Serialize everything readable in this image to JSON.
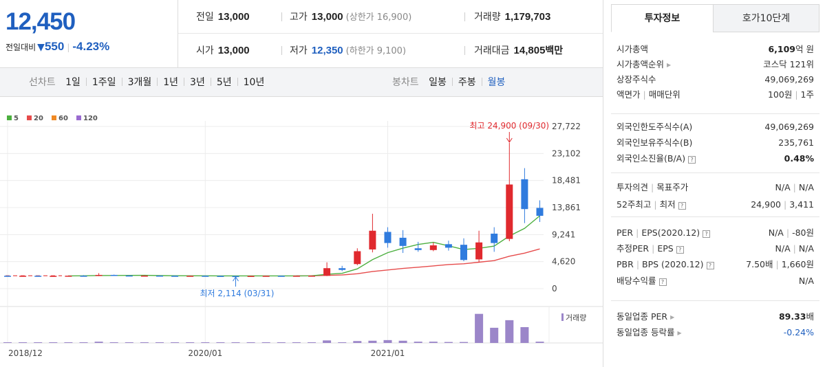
{
  "quote": {
    "price": "12,450",
    "change_label": "전일대비",
    "change_value": "550",
    "change_rate": "-4.23%",
    "stats": {
      "prev_close_label": "전일",
      "prev_close": "13,000",
      "high_label": "고가",
      "high": "13,000",
      "upper_limit": "(상한가 16,900)",
      "volume_label": "거래량",
      "volume": "1,179,703",
      "open_label": "시가",
      "open": "13,000",
      "low_label": "저가",
      "low": "12,350",
      "lower_limit": "(하한가 9,100)",
      "amount_label": "거래대금",
      "amount": "14,805",
      "amount_unit": "백만"
    }
  },
  "toolbar": {
    "line_chart_label": "선차트",
    "line_options": [
      "1일",
      "1주일",
      "3개월",
      "1년",
      "3년",
      "5년",
      "10년"
    ],
    "candle_chart_label": "봉차트",
    "candle_options": [
      "일봉",
      "주봉",
      "월봉"
    ],
    "candle_active": "월봉"
  },
  "chart_data": {
    "type": "candlestick",
    "period": "월봉",
    "colors": {
      "up": "#e0292e",
      "down": "#2f7bde",
      "ma5": "#4caf3f",
      "ma20": "#e64b4b",
      "ma60": "#f08a24",
      "ma120": "#9a6bd0",
      "volume": "#9b86c9",
      "annotation_high": "#e0292e",
      "annotation_low": "#2f7bde"
    },
    "legend": [
      {
        "name": "5",
        "color": "#4caf3f"
      },
      {
        "name": "20",
        "color": "#e64b4b"
      },
      {
        "name": "60",
        "color": "#f08a24"
      },
      {
        "name": "120",
        "color": "#9a6bd0"
      }
    ],
    "y_ticks": [
      "27,722",
      "23,102",
      "18,481",
      "13,861",
      "9,241",
      "4,620",
      "0"
    ],
    "y_tick_values": [
      27722,
      23102,
      18481,
      13861,
      9241,
      4620,
      0
    ],
    "ylim": [
      0,
      27722
    ],
    "x_ticks": [
      "2018/12",
      "2020/01",
      "2021/01"
    ],
    "x_tick_index": [
      0,
      13,
      25
    ],
    "annotations": {
      "high": "최고 24,900 (09/30)",
      "high_value": 24900,
      "high_index": 33,
      "low": "최저 2,114 (03/31)",
      "low_value": 2114,
      "low_index": 15
    },
    "volume_label": "거래량",
    "candles": [
      {
        "o": 2200,
        "h": 2250,
        "l": 2150,
        "c": 2180
      },
      {
        "o": 2180,
        "h": 2230,
        "l": 2140,
        "c": 2200
      },
      {
        "o": 2200,
        "h": 2240,
        "l": 2150,
        "c": 2170
      },
      {
        "o": 2170,
        "h": 2220,
        "l": 2130,
        "c": 2190
      },
      {
        "o": 2190,
        "h": 2250,
        "l": 2150,
        "c": 2210
      },
      {
        "o": 2210,
        "h": 2300,
        "l": 2160,
        "c": 2180
      },
      {
        "o": 2180,
        "h": 2650,
        "l": 2150,
        "c": 2350
      },
      {
        "o": 2350,
        "h": 2400,
        "l": 2200,
        "c": 2250
      },
      {
        "o": 2250,
        "h": 2300,
        "l": 2180,
        "c": 2200
      },
      {
        "o": 2200,
        "h": 2280,
        "l": 2160,
        "c": 2230
      },
      {
        "o": 2230,
        "h": 2280,
        "l": 2180,
        "c": 2200
      },
      {
        "o": 2200,
        "h": 2260,
        "l": 2150,
        "c": 2170
      },
      {
        "o": 2170,
        "h": 2230,
        "l": 2140,
        "c": 2200
      },
      {
        "o": 2200,
        "h": 2240,
        "l": 2150,
        "c": 2180
      },
      {
        "o": 2180,
        "h": 2220,
        "l": 2130,
        "c": 2160
      },
      {
        "o": 2160,
        "h": 2200,
        "l": 2114,
        "c": 2150
      },
      {
        "o": 2150,
        "h": 2200,
        "l": 2120,
        "c": 2180
      },
      {
        "o": 2180,
        "h": 2230,
        "l": 2140,
        "c": 2200
      },
      {
        "o": 2200,
        "h": 2240,
        "l": 2160,
        "c": 2190
      },
      {
        "o": 2190,
        "h": 2240,
        "l": 2150,
        "c": 2210
      },
      {
        "o": 2210,
        "h": 2260,
        "l": 2170,
        "c": 2220
      },
      {
        "o": 2200,
        "h": 4500,
        "l": 2150,
        "c": 3500
      },
      {
        "o": 3500,
        "h": 3900,
        "l": 3000,
        "c": 3200
      },
      {
        "o": 4200,
        "h": 6900,
        "l": 4000,
        "c": 6400
      },
      {
        "o": 6700,
        "h": 12800,
        "l": 6200,
        "c": 9900
      },
      {
        "o": 9700,
        "h": 10500,
        "l": 7000,
        "c": 7800
      },
      {
        "o": 8700,
        "h": 10000,
        "l": 6100,
        "c": 7300
      },
      {
        "o": 6900,
        "h": 8000,
        "l": 6300,
        "c": 6600
      },
      {
        "o": 6600,
        "h": 7900,
        "l": 6400,
        "c": 7400
      },
      {
        "o": 7600,
        "h": 8200,
        "l": 6500,
        "c": 7000
      },
      {
        "o": 7500,
        "h": 8600,
        "l": 4700,
        "c": 4900
      },
      {
        "o": 5000,
        "h": 9900,
        "l": 4500,
        "c": 7900
      },
      {
        "o": 9400,
        "h": 10500,
        "l": 6300,
        "c": 7800
      },
      {
        "o": 8500,
        "h": 24900,
        "l": 8100,
        "c": 17800
      },
      {
        "o": 18700,
        "h": 20600,
        "l": 11200,
        "c": 13600
      },
      {
        "o": 13800,
        "h": 15100,
        "l": 11400,
        "c": 12450
      }
    ],
    "ma5": [
      null,
      null,
      null,
      null,
      2190,
      2200,
      2240,
      2260,
      2270,
      2280,
      2230,
      2210,
      2200,
      2200,
      2190,
      2180,
      2180,
      2180,
      2180,
      2190,
      2200,
      2460,
      2620,
      3380,
      4960,
      6160,
      6920,
      7550,
      7920,
      7320,
      6680,
      6900,
      7270,
      9000,
      10300,
      12450
    ],
    "ma20": [
      null,
      null,
      null,
      null,
      null,
      null,
      null,
      null,
      null,
      null,
      null,
      null,
      null,
      null,
      null,
      null,
      null,
      null,
      null,
      2190,
      2200,
      2270,
      2340,
      2550,
      2920,
      3200,
      3450,
      3660,
      3890,
      4120,
      4250,
      4520,
      4790,
      5540,
      6070,
      6790
    ],
    "volume": [
      0.01,
      0.01,
      0.01,
      0.01,
      0.01,
      0.02,
      0.04,
      0.02,
      0.01,
      0.01,
      0.01,
      0.01,
      0.01,
      0.01,
      0.01,
      0.01,
      0.01,
      0.01,
      0.01,
      0.01,
      0.01,
      0.08,
      0.02,
      0.06,
      0.07,
      0.09,
      0.07,
      0.04,
      0.04,
      0.03,
      0.03,
      0.92,
      0.48,
      0.72,
      0.5,
      0.04
    ]
  },
  "info": {
    "tabs": [
      "투자정보",
      "호가10단계"
    ],
    "group1": [
      {
        "k": "시가총액",
        "v_bold": "6,109",
        "v_rest": "억 원"
      },
      {
        "k": "시가총액순위",
        "v": "코스닥 121위"
      },
      {
        "k": "상장주식수",
        "v": "49,069,269"
      },
      {
        "k": "액면가",
        "k2": "매매단위",
        "v": "100원",
        "v2": "1주"
      }
    ],
    "group2": [
      {
        "k": "외국인한도주식수(A)",
        "v": "49,069,269"
      },
      {
        "k": "외국인보유주식수(B)",
        "v": "235,761"
      },
      {
        "k": "외국인소진율(B/A)",
        "v_bold": "0.48%"
      }
    ],
    "group3": [
      {
        "k": "투자의견",
        "k2": "목표주가",
        "v": "N/A",
        "v2": "N/A"
      },
      {
        "k": "52주최고",
        "k2": "최저",
        "v": "24,900",
        "v2": "3,411"
      }
    ],
    "group4": [
      {
        "k": "PER",
        "k2": "EPS(2020.12)",
        "v": "N/A",
        "v2": "-80원"
      },
      {
        "k": "추정PER",
        "k2": "EPS",
        "v": "N/A",
        "v2": "N/A"
      },
      {
        "k": "PBR",
        "k2": "BPS (2020.12)",
        "v": "7.50배",
        "v2": "1,660원"
      },
      {
        "k": "배당수익률",
        "v": "N/A"
      }
    ],
    "group5": [
      {
        "k": "동일업종 PER",
        "v_bold": "89.33",
        "v_rest": "배"
      },
      {
        "k": "동일업종 등락률",
        "v": "-0.24%"
      }
    ]
  }
}
